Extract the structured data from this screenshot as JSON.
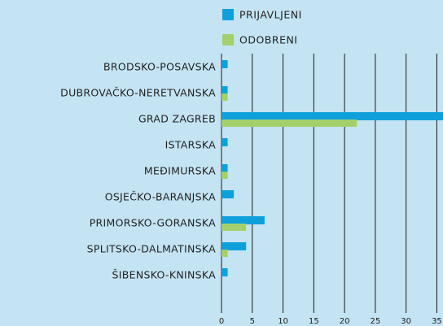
{
  "chart_data": {
    "type": "bar",
    "orientation": "horizontal",
    "categories": [
      "BRODSKO-POSAVSKA",
      "DUBROVAČKO-NERETVANSKA",
      "GRAD ZAGREB",
      "ISTARSKA",
      "MEĐIMURSKA",
      "OSJEČKO-BARANJSKA",
      "PRIMORSKO-GORANSKA",
      "SPLITSKO-DALMATINSKA",
      "ŠIBENSKO-KNINSKA"
    ],
    "series": [
      {
        "name": "PRIJAVLJENI",
        "color": "#0fa0dc",
        "values": [
          1,
          1,
          36,
          1,
          1,
          2,
          7,
          4,
          1
        ]
      },
      {
        "name": "ODOBRENI",
        "color": "#a4cf6c",
        "values": [
          0,
          1,
          22,
          0,
          1,
          0,
          4,
          1,
          0
        ]
      }
    ],
    "xlim": [
      0,
      36
    ],
    "xticks": [
      0,
      5,
      10,
      15,
      20,
      25,
      30,
      35
    ],
    "grid": true,
    "legend": "top"
  }
}
